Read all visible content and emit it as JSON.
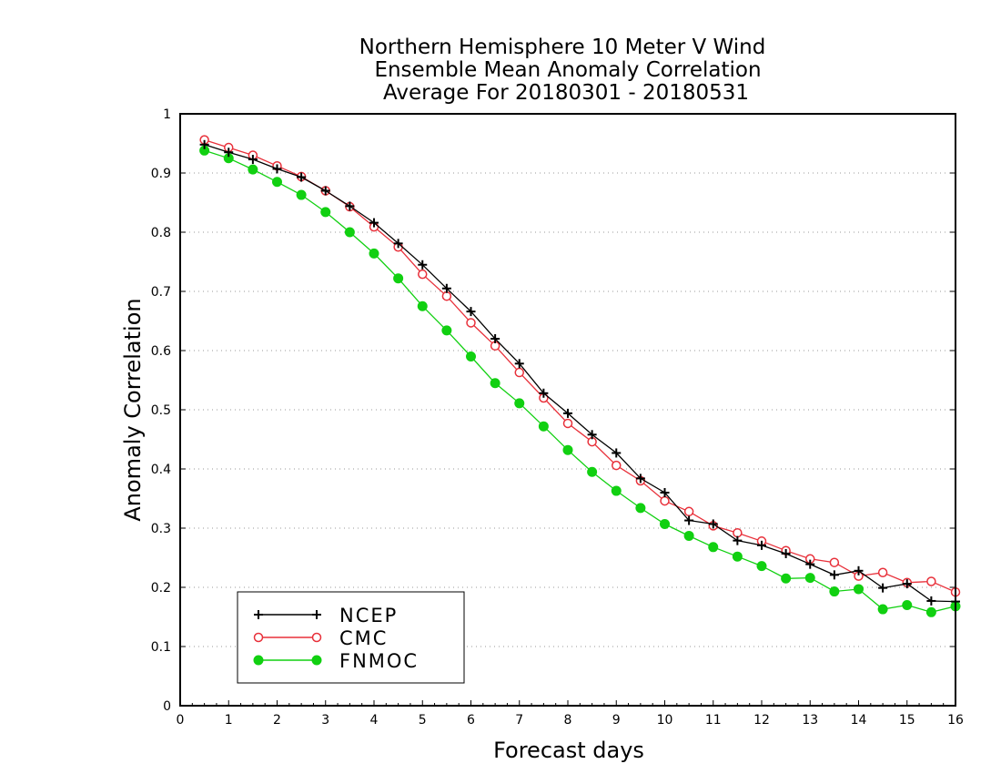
{
  "chart_data": {
    "type": "line",
    "title": [
      "Northern Hemisphere 10 Meter V Wind",
      "Ensemble Mean Anomaly Correlation",
      "Average For 20180301 - 20180531"
    ],
    "xlabel": "Forecast days",
    "ylabel": "Anomaly Correlation",
    "xlim": [
      0,
      16
    ],
    "ylim": [
      0,
      1
    ],
    "xticks": [
      "0",
      "1",
      "2",
      "3",
      "4",
      "5",
      "6",
      "7",
      "8",
      "9",
      "10",
      "11",
      "12",
      "13",
      "14",
      "15",
      "16"
    ],
    "yticks": [
      "0",
      "0.1",
      "0.2",
      "0.3",
      "0.4",
      "0.5",
      "0.6",
      "0.7",
      "0.8",
      "0.9",
      "1"
    ],
    "grid": "horizontal-dotted",
    "legend_position": "bottom-left",
    "x": [
      0.5,
      1,
      1.5,
      2,
      2.5,
      3,
      3.5,
      4,
      4.5,
      5,
      5.5,
      6,
      6.5,
      7,
      7.5,
      8,
      8.5,
      9,
      9.5,
      10,
      10.5,
      11,
      11.5,
      12,
      12.5,
      13,
      13.5,
      14,
      14.5,
      15,
      15.5,
      16
    ],
    "series": [
      {
        "name": "NCEP",
        "color": "#000000",
        "marker": "plus",
        "values": [
          0.948,
          0.935,
          0.923,
          0.907,
          0.893,
          0.87,
          0.844,
          0.816,
          0.781,
          0.745,
          0.705,
          0.666,
          0.62,
          0.578,
          0.528,
          0.494,
          0.458,
          0.427,
          0.384,
          0.36,
          0.313,
          0.307,
          0.279,
          0.271,
          0.257,
          0.239,
          0.221,
          0.228,
          0.199,
          0.206,
          0.177,
          0.176
        ]
      },
      {
        "name": "CMC",
        "color": "#e8303a",
        "marker": "open-circle",
        "values": [
          0.956,
          0.943,
          0.93,
          0.912,
          0.894,
          0.87,
          0.843,
          0.809,
          0.775,
          0.729,
          0.692,
          0.647,
          0.608,
          0.563,
          0.52,
          0.477,
          0.446,
          0.406,
          0.38,
          0.346,
          0.328,
          0.304,
          0.292,
          0.278,
          0.262,
          0.248,
          0.242,
          0.219,
          0.225,
          0.208,
          0.21,
          0.192
        ]
      },
      {
        "name": "FNMOC",
        "color": "#11d011",
        "marker": "filled-circle",
        "values": [
          0.938,
          0.925,
          0.906,
          0.885,
          0.863,
          0.834,
          0.8,
          0.764,
          0.722,
          0.675,
          0.634,
          0.59,
          0.545,
          0.511,
          0.472,
          0.432,
          0.395,
          0.363,
          0.334,
          0.307,
          0.287,
          0.268,
          0.252,
          0.236,
          0.215,
          0.216,
          0.193,
          0.197,
          0.163,
          0.17,
          0.158,
          0.168
        ]
      }
    ]
  }
}
